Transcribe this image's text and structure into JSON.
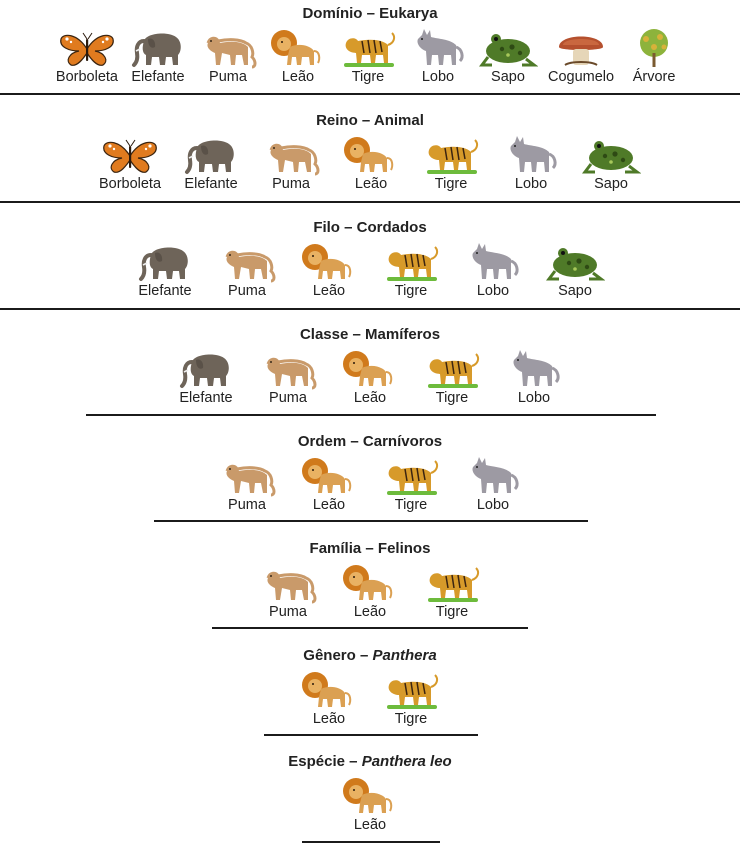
{
  "levels": [
    {
      "id": "dominio",
      "rank": "Domínio",
      "sep": " – ",
      "taxon": "Eukarya",
      "italic": false,
      "organisms": [
        {
          "name": "Borboleta",
          "icon": "butterfly-icon"
        },
        {
          "name": "Elefante",
          "icon": "elephant-icon"
        },
        {
          "name": "Puma",
          "icon": "puma-icon"
        },
        {
          "name": "Leão",
          "icon": "lion-icon"
        },
        {
          "name": "Tigre",
          "icon": "tiger-icon"
        },
        {
          "name": "Lobo",
          "icon": "wolf-icon"
        },
        {
          "name": "Sapo",
          "icon": "frog-icon"
        },
        {
          "name": "Cogumelo",
          "icon": "mushroom-icon"
        },
        {
          "name": "Árvore",
          "icon": "tree-icon"
        }
      ]
    },
    {
      "id": "reino",
      "rank": "Reino",
      "sep": " – ",
      "taxon": "Animal",
      "italic": false,
      "organisms": [
        {
          "name": "Borboleta",
          "icon": "butterfly-icon"
        },
        {
          "name": "Elefante",
          "icon": "elephant-icon"
        },
        {
          "name": "Puma",
          "icon": "puma-icon"
        },
        {
          "name": "Leão",
          "icon": "lion-icon"
        },
        {
          "name": "Tigre",
          "icon": "tiger-icon"
        },
        {
          "name": "Lobo",
          "icon": "wolf-icon"
        },
        {
          "name": "Sapo",
          "icon": "frog-icon"
        }
      ]
    },
    {
      "id": "filo",
      "rank": "Filo",
      "sep": " – ",
      "taxon": "Cordados",
      "italic": false,
      "organisms": [
        {
          "name": "Elefante",
          "icon": "elephant-icon"
        },
        {
          "name": "Puma",
          "icon": "puma-icon"
        },
        {
          "name": "Leão",
          "icon": "lion-icon"
        },
        {
          "name": "Tigre",
          "icon": "tiger-icon"
        },
        {
          "name": "Lobo",
          "icon": "wolf-icon"
        },
        {
          "name": "Sapo",
          "icon": "frog-icon"
        }
      ]
    },
    {
      "id": "classe",
      "rank": "Classe",
      "sep": " – ",
      "taxon": "Mamíferos",
      "italic": false,
      "organisms": [
        {
          "name": "Elefante",
          "icon": "elephant-icon"
        },
        {
          "name": "Puma",
          "icon": "puma-icon"
        },
        {
          "name": "Leão",
          "icon": "lion-icon"
        },
        {
          "name": "Tigre",
          "icon": "tiger-icon"
        },
        {
          "name": "Lobo",
          "icon": "wolf-icon"
        }
      ]
    },
    {
      "id": "ordem",
      "rank": "Ordem",
      "sep": " – ",
      "taxon": "Carnívoros",
      "italic": false,
      "organisms": [
        {
          "name": "Puma",
          "icon": "puma-icon"
        },
        {
          "name": "Leão",
          "icon": "lion-icon"
        },
        {
          "name": "Tigre",
          "icon": "tiger-icon"
        },
        {
          "name": "Lobo",
          "icon": "wolf-icon"
        }
      ]
    },
    {
      "id": "familia",
      "rank": "Família",
      "sep": " – ",
      "taxon": "Felinos",
      "italic": false,
      "organisms": [
        {
          "name": "Puma",
          "icon": "puma-icon"
        },
        {
          "name": "Leão",
          "icon": "lion-icon"
        },
        {
          "name": "Tigre",
          "icon": "tiger-icon"
        }
      ]
    },
    {
      "id": "genero",
      "rank": "Gênero",
      "sep": " – ",
      "taxon": "Panthera",
      "italic": true,
      "organisms": [
        {
          "name": "Leão",
          "icon": "lion-icon"
        },
        {
          "name": "Tigre",
          "icon": "tiger-icon"
        }
      ]
    },
    {
      "id": "especie",
      "rank": "Espécie",
      "sep": " – ",
      "taxon": "Panthera leo",
      "italic": true,
      "organisms": [
        {
          "name": "Leão",
          "icon": "lion-icon"
        }
      ]
    }
  ],
  "colors": {
    "divider": "#1b1b1b",
    "text": "#222222",
    "butterfly": "#e07b1f",
    "elephant": "#6e6459",
    "puma": "#c99a6a",
    "lion": "#d07a1c",
    "tiger": "#d79a2a",
    "wolf": "#9d9aa3",
    "frog": "#4f7a28",
    "mushroom": "#b5502e",
    "tree": "#8db33c",
    "grass": "#6dbb3c"
  }
}
